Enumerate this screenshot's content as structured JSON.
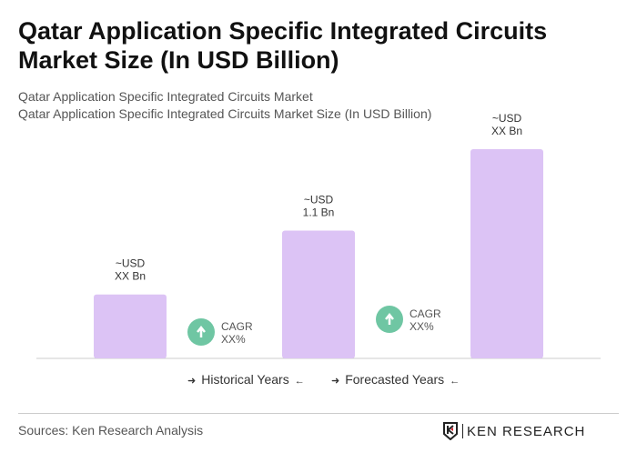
{
  "title": "Qatar Application Specific Integrated Circuits Market Size (In USD Billion)",
  "subtitle1": "Qatar Application Specific Integrated Circuits Market",
  "subtitle2": "Qatar Application Specific Integrated Circuits Market Size (In USD Billion)",
  "chart_data": {
    "type": "bar",
    "categories": [
      "",
      "",
      ""
    ],
    "values": [
      0.55,
      1.1,
      1.8
    ],
    "data_labels": [
      [
        "~USD",
        "XX Bn"
      ],
      [
        "~USD",
        "1.1 Bn"
      ],
      [
        "~USD",
        "XX Bn"
      ]
    ],
    "bar_color": "#dcc3f5",
    "cagr": [
      {
        "label": "CAGR",
        "value": "XX%"
      },
      {
        "label": "CAGR",
        "value": "XX%"
      }
    ],
    "cagr_color": "#6fc6a3",
    "ylim": [
      0,
      1.8
    ]
  },
  "legend": {
    "historical": "Historical Years",
    "forecasted": "Forecasted Years"
  },
  "footer": {
    "source": "Sources: Ken Research Analysis",
    "logo": "KEN RESEARCH"
  }
}
